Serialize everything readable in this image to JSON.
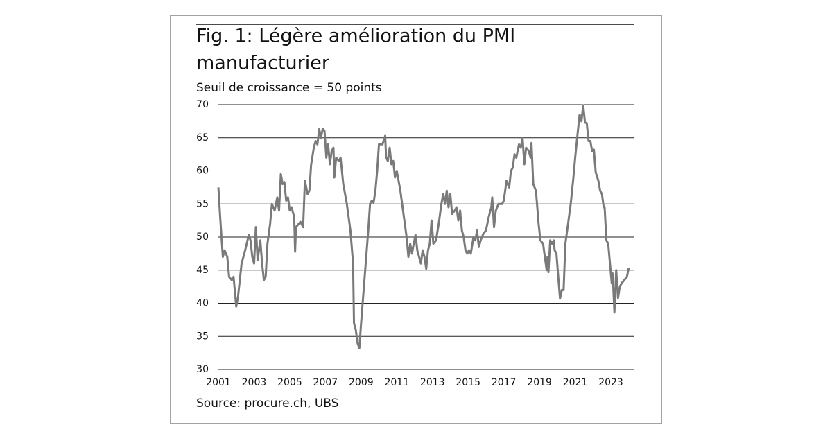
{
  "chart_data": {
    "type": "line",
    "title": [
      "Fig. 1: Légère amélioration du PMI",
      "manufacturier"
    ],
    "subtitle": "Seuil de croissance = 50 points",
    "source": "Source: procure.ch, UBS",
    "xlim": [
      2001,
      2024.32
    ],
    "xticks": [
      2001,
      2003,
      2005,
      2007,
      2009,
      2011,
      2013,
      2015,
      2017,
      2019,
      2021,
      2023
    ],
    "ylim": [
      30,
      70
    ],
    "yticks": [
      30,
      35,
      40,
      45,
      50,
      55,
      60,
      65,
      70
    ],
    "grid": true,
    "x": [
      2001.0,
      2001.1,
      2001.25,
      2001.35,
      2001.5,
      2001.6,
      2001.75,
      2001.85,
      2002.0,
      2002.1,
      2002.3,
      2002.5,
      2002.7,
      2002.8,
      2002.9,
      2003.0,
      2003.1,
      2003.2,
      2003.35,
      2003.45,
      2003.55,
      2003.65,
      2003.75,
      2003.9,
      2004.0,
      2004.15,
      2004.3,
      2004.4,
      2004.5,
      2004.6,
      2004.7,
      2004.8,
      2004.9,
      2005.0,
      2005.1,
      2005.25,
      2005.3,
      2005.35,
      2005.5,
      2005.6,
      2005.75,
      2005.85,
      2006.0,
      2006.1,
      2006.2,
      2006.35,
      2006.45,
      2006.55,
      2006.65,
      2006.75,
      2006.85,
      2006.95,
      2007.05,
      2007.15,
      2007.25,
      2007.35,
      2007.45,
      2007.5,
      2007.6,
      2007.75,
      2007.85,
      2008.0,
      2008.2,
      2008.4,
      2008.55,
      2008.6,
      2008.7,
      2008.8,
      2008.9,
      2009.0,
      2009.2,
      2009.4,
      2009.5,
      2009.6,
      2009.7,
      2009.8,
      2009.9,
      2010.0,
      2010.2,
      2010.35,
      2010.4,
      2010.5,
      2010.6,
      2010.7,
      2010.8,
      2010.9,
      2011.0,
      2011.2,
      2011.4,
      2011.55,
      2011.65,
      2011.75,
      2011.85,
      2011.95,
      2012.05,
      2012.15,
      2012.25,
      2012.35,
      2012.45,
      2012.55,
      2012.65,
      2012.75,
      2012.85,
      2012.95,
      2013.05,
      2013.2,
      2013.35,
      2013.5,
      2013.6,
      2013.7,
      2013.8,
      2013.9,
      2014.0,
      2014.1,
      2014.25,
      2014.35,
      2014.45,
      2014.55,
      2014.65,
      2014.75,
      2014.85,
      2014.95,
      2015.05,
      2015.15,
      2015.3,
      2015.4,
      2015.5,
      2015.6,
      2015.7,
      2015.85,
      2016.0,
      2016.15,
      2016.3,
      2016.35,
      2016.45,
      2016.55,
      2016.7,
      2016.9,
      2017.0,
      2017.15,
      2017.3,
      2017.4,
      2017.5,
      2017.6,
      2017.7,
      2017.85,
      2017.95,
      2018.05,
      2018.15,
      2018.25,
      2018.4,
      2018.5,
      2018.55,
      2018.65,
      2018.8,
      2018.95,
      2019.05,
      2019.2,
      2019.3,
      2019.4,
      2019.45,
      2019.5,
      2019.6,
      2019.7,
      2019.8,
      2019.85,
      2019.95,
      2020.05,
      2020.15,
      2020.25,
      2020.35,
      2020.45,
      2020.6,
      2020.75,
      2020.9,
      2021.0,
      2021.15,
      2021.25,
      2021.35,
      2021.45,
      2021.55,
      2021.65,
      2021.75,
      2021.85,
      2021.95,
      2022.05,
      2022.15,
      2022.3,
      2022.4,
      2022.5,
      2022.6,
      2022.65,
      2022.75,
      2022.85,
      2022.95,
      2023.05,
      2023.1,
      2023.2,
      2023.3,
      2023.4,
      2023.5,
      2023.6,
      2023.75,
      2023.9,
      2024.0
    ],
    "series": [
      {
        "color": "#7a7a7a",
        "values": [
          57.5,
          53,
          47,
          48,
          47,
          44,
          43.5,
          44,
          39.5,
          41,
          46,
          48,
          50.3,
          49.5,
          47,
          46,
          51.5,
          46.5,
          49.5,
          46,
          43.5,
          44,
          49,
          52,
          55,
          54,
          56,
          54,
          59.5,
          58,
          58.3,
          55.5,
          56,
          54,
          54.5,
          53,
          47.8,
          51.5,
          52,
          52.3,
          51.5,
          58.5,
          56.5,
          57,
          61,
          63.5,
          64.5,
          64,
          66.3,
          65,
          66.4,
          66,
          62,
          64,
          61,
          63,
          63.5,
          59,
          62,
          61.5,
          62,
          58,
          55,
          51,
          46,
          37,
          36,
          34,
          33.2,
          37,
          44,
          51,
          55,
          55.5,
          55.2,
          57,
          60,
          64,
          64,
          65.3,
          62,
          61.5,
          63.5,
          61,
          61.5,
          59,
          60,
          57,
          53,
          50,
          47,
          49,
          47.5,
          49,
          50.3,
          48,
          47,
          46,
          48,
          47,
          45.2,
          48,
          49,
          52.5,
          49,
          49.5,
          52,
          55,
          56.5,
          55,
          57,
          54.5,
          56.5,
          53.5,
          54,
          54.5,
          52.5,
          54,
          51,
          50,
          48,
          47.5,
          48,
          47.5,
          50,
          49.5,
          51,
          48.5,
          49.5,
          50.5,
          51,
          53,
          54.5,
          56,
          51.5,
          54,
          55,
          55,
          55.5,
          58.5,
          57.5,
          60,
          60.5,
          62.5,
          62,
          64,
          63.5,
          65,
          61,
          63.5,
          63,
          62,
          64.2,
          58,
          57,
          52,
          49.5,
          49,
          47,
          45,
          47,
          44.7,
          49.5,
          49,
          49.5,
          48,
          47.5,
          44,
          40.7,
          42,
          42,
          49,
          52,
          55,
          59,
          62,
          66,
          68.5,
          67.5,
          69.9,
          67.3,
          67.2,
          64.5,
          64.5,
          63,
          63.2,
          59.8,
          58.5,
          57,
          56.5,
          54.5,
          54.5,
          49.5,
          49,
          46,
          43,
          44.5,
          38.6,
          45,
          40.8,
          42.5,
          43,
          43.5,
          44,
          45.3
        ]
      }
    ]
  }
}
